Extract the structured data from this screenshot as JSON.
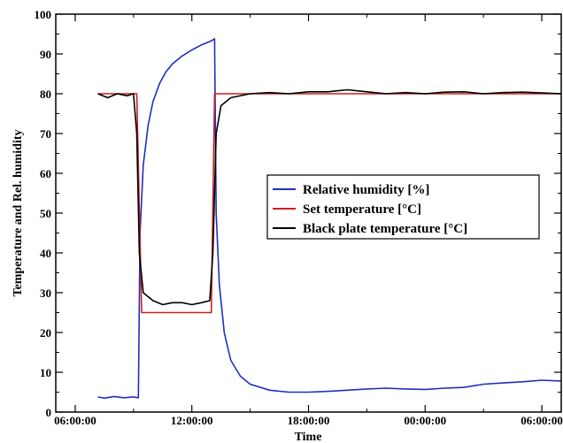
{
  "chart_data": {
    "type": "line",
    "xlabel": "Time",
    "ylabel": "Temperature and Rel. humidity",
    "xlim": [
      "2000-01-01T05:00:00",
      "2000-01-02T07:00:00"
    ],
    "ylim": [
      0,
      100
    ],
    "x_ticks": [
      "06:00:00",
      "12:00:00",
      "18:00:00",
      "00:00:00",
      "06:00:00"
    ],
    "x_tick_times": [
      "2000-01-01T06:00:00",
      "2000-01-01T12:00:00",
      "2000-01-01T18:00:00",
      "2000-01-02T00:00:00",
      "2000-01-02T06:00:00"
    ],
    "y_ticks": [
      0,
      10,
      20,
      30,
      40,
      50,
      60,
      70,
      80,
      90,
      100
    ],
    "legend_position": "center-right",
    "grid": false,
    "series": [
      {
        "name": "Relative humidity [%]",
        "color": "#1f2fbf",
        "points": [
          [
            "2000-01-01T07:10:00",
            3.8
          ],
          [
            "2000-01-01T07:30:00",
            3.5
          ],
          [
            "2000-01-01T08:00:00",
            3.9
          ],
          [
            "2000-01-01T08:30:00",
            3.6
          ],
          [
            "2000-01-01T09:00:00",
            3.8
          ],
          [
            "2000-01-01T09:15:00",
            3.6
          ],
          [
            "2000-01-01T09:20:00",
            45.0
          ],
          [
            "2000-01-01T09:30:00",
            62.0
          ],
          [
            "2000-01-01T09:45:00",
            72.0
          ],
          [
            "2000-01-01T10:00:00",
            78.0
          ],
          [
            "2000-01-01T10:20:00",
            82.5
          ],
          [
            "2000-01-01T10:40:00",
            85.5
          ],
          [
            "2000-01-01T11:00:00",
            87.5
          ],
          [
            "2000-01-01T11:30:00",
            89.5
          ],
          [
            "2000-01-01T12:00:00",
            91.0
          ],
          [
            "2000-01-01T12:30:00",
            92.3
          ],
          [
            "2000-01-01T13:00:00",
            93.3
          ],
          [
            "2000-01-01T13:10:00",
            93.8
          ],
          [
            "2000-01-01T13:15:00",
            50.0
          ],
          [
            "2000-01-01T13:25:00",
            32.0
          ],
          [
            "2000-01-01T13:40:00",
            20.0
          ],
          [
            "2000-01-01T14:00:00",
            13.0
          ],
          [
            "2000-01-01T14:30:00",
            9.0
          ],
          [
            "2000-01-01T15:00:00",
            7.0
          ],
          [
            "2000-01-01T16:00:00",
            5.5
          ],
          [
            "2000-01-01T17:00:00",
            5.0
          ],
          [
            "2000-01-01T18:00:00",
            5.0
          ],
          [
            "2000-01-01T19:00:00",
            5.2
          ],
          [
            "2000-01-01T20:00:00",
            5.5
          ],
          [
            "2000-01-01T21:00:00",
            5.8
          ],
          [
            "2000-01-01T22:00:00",
            6.0
          ],
          [
            "2000-01-01T23:00:00",
            5.8
          ],
          [
            "2000-01-02T00:00:00",
            5.7
          ],
          [
            "2000-01-02T01:00:00",
            6.0
          ],
          [
            "2000-01-02T02:00:00",
            6.2
          ],
          [
            "2000-01-02T03:00:00",
            7.0
          ],
          [
            "2000-01-02T04:00:00",
            7.3
          ],
          [
            "2000-01-02T05:00:00",
            7.6
          ],
          [
            "2000-01-02T06:00:00",
            8.0
          ],
          [
            "2000-01-02T07:00:00",
            7.8
          ]
        ]
      },
      {
        "name": "Set temperature [°C]",
        "color": "#cc1f1f",
        "points": [
          [
            "2000-01-01T07:10:00",
            80
          ],
          [
            "2000-01-01T09:10:00",
            80
          ],
          [
            "2000-01-01T09:25:00",
            25
          ],
          [
            "2000-01-01T13:00:00",
            25
          ],
          [
            "2000-01-01T13:10:00",
            80
          ],
          [
            "2000-01-02T07:00:00",
            80
          ]
        ]
      },
      {
        "name": "Black plate temperature [°C]",
        "color": "#000000",
        "points": [
          [
            "2000-01-01T07:10:00",
            80.0
          ],
          [
            "2000-01-01T07:40:00",
            79.0
          ],
          [
            "2000-01-01T08:10:00",
            80.0
          ],
          [
            "2000-01-01T08:40:00",
            79.5
          ],
          [
            "2000-01-01T09:00:00",
            80.0
          ],
          [
            "2000-01-01T09:10:00",
            70.0
          ],
          [
            "2000-01-01T09:18:00",
            40.0
          ],
          [
            "2000-01-01T09:30:00",
            30.0
          ],
          [
            "2000-01-01T10:00:00",
            28.0
          ],
          [
            "2000-01-01T10:30:00",
            27.0
          ],
          [
            "2000-01-01T11:00:00",
            27.5
          ],
          [
            "2000-01-01T11:30:00",
            27.5
          ],
          [
            "2000-01-01T12:00:00",
            27.0
          ],
          [
            "2000-01-01T12:30:00",
            27.5
          ],
          [
            "2000-01-01T12:55:00",
            28.0
          ],
          [
            "2000-01-01T13:05:00",
            40.0
          ],
          [
            "2000-01-01T13:15:00",
            70.0
          ],
          [
            "2000-01-01T13:30:00",
            77.0
          ],
          [
            "2000-01-01T14:00:00",
            79.0
          ],
          [
            "2000-01-01T15:00:00",
            80.0
          ],
          [
            "2000-01-01T16:00:00",
            80.3
          ],
          [
            "2000-01-01T17:00:00",
            80.0
          ],
          [
            "2000-01-01T18:00:00",
            80.5
          ],
          [
            "2000-01-01T19:00:00",
            80.5
          ],
          [
            "2000-01-01T20:00:00",
            81.0
          ],
          [
            "2000-01-01T21:00:00",
            80.5
          ],
          [
            "2000-01-01T22:00:00",
            80.0
          ],
          [
            "2000-01-01T23:00:00",
            80.3
          ],
          [
            "2000-01-02T00:00:00",
            80.0
          ],
          [
            "2000-01-02T01:00:00",
            80.4
          ],
          [
            "2000-01-02T02:00:00",
            80.5
          ],
          [
            "2000-01-02T03:00:00",
            80.0
          ],
          [
            "2000-01-02T04:00:00",
            80.3
          ],
          [
            "2000-01-02T05:00:00",
            80.4
          ],
          [
            "2000-01-02T06:00:00",
            80.2
          ],
          [
            "2000-01-02T07:00:00",
            80.0
          ]
        ]
      }
    ]
  }
}
